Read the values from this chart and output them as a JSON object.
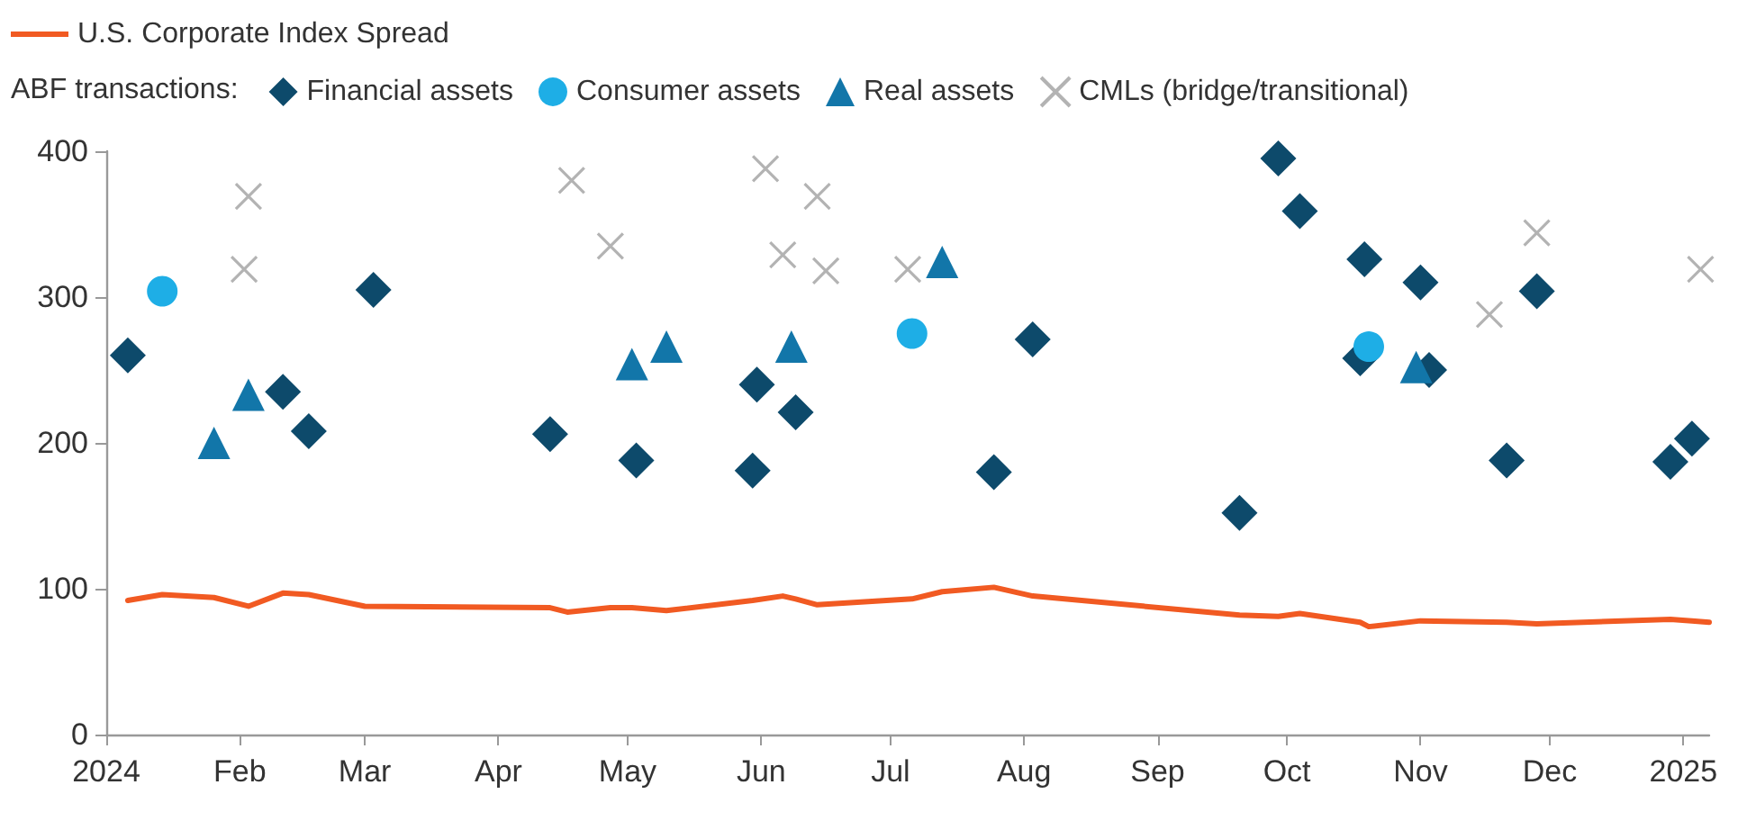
{
  "chart_data": {
    "type": "scatter",
    "legend": "top left",
    "legend_title": "ABF transactions:",
    "grid": false,
    "xlim": [
      "2024-01-01",
      "2025-01-07"
    ],
    "xticks": [
      {
        "value": "2024-01-01",
        "label": "2024"
      },
      {
        "value": "2024-02-01",
        "label": "Feb"
      },
      {
        "value": "2024-03-01",
        "label": "Mar"
      },
      {
        "value": "2024-04-01",
        "label": "Apr"
      },
      {
        "value": "2024-05-01",
        "label": "May"
      },
      {
        "value": "2024-06-01",
        "label": "Jun"
      },
      {
        "value": "2024-07-01",
        "label": "Jul"
      },
      {
        "value": "2024-08-01",
        "label": "Aug"
      },
      {
        "value": "2024-09-01",
        "label": "Sep"
      },
      {
        "value": "2024-10-01",
        "label": "Oct"
      },
      {
        "value": "2024-11-01",
        "label": "Nov"
      },
      {
        "value": "2024-12-01",
        "label": "Dec"
      },
      {
        "value": "2025-01-01",
        "label": "2025"
      }
    ],
    "ylim": [
      0,
      400
    ],
    "yticks": [
      0,
      100,
      200,
      300,
      400
    ],
    "series": [
      {
        "name": "U.S. Corporate Index Spread",
        "type": "line",
        "marker": "none",
        "color": "#f15a22",
        "x": [
          "2024-01-06",
          "2024-01-14",
          "2024-01-26",
          "2024-02-03",
          "2024-02-11",
          "2024-02-17",
          "2024-03-01",
          "2024-04-13",
          "2024-04-17",
          "2024-04-27",
          "2024-05-02",
          "2024-05-10",
          "2024-05-30",
          "2024-06-06",
          "2024-06-09",
          "2024-06-14",
          "2024-07-06",
          "2024-07-13",
          "2024-07-25",
          "2024-08-03",
          "2024-09-20",
          "2024-09-29",
          "2024-10-04",
          "2024-10-18",
          "2024-10-20",
          "2024-11-01",
          "2024-11-21",
          "2024-11-28",
          "2024-12-29",
          "2025-01-03",
          "2025-01-07"
        ],
        "values": [
          92,
          96,
          94,
          88,
          97,
          96,
          88,
          87,
          84,
          87,
          87,
          85,
          92,
          95,
          93,
          89,
          93,
          98,
          101,
          95,
          82,
          81,
          83,
          77,
          74,
          78,
          77,
          76,
          79,
          78,
          77
        ]
      },
      {
        "name": "Financial assets",
        "marker": "diamond",
        "color": "#0d4a6b",
        "x": [
          "2024-01-06",
          "2024-02-11",
          "2024-02-17",
          "2024-03-03",
          "2024-04-13",
          "2024-05-03",
          "2024-05-30",
          "2024-05-31",
          "2024-06-09",
          "2024-07-25",
          "2024-08-03",
          "2024-09-20",
          "2024-09-29",
          "2024-10-04",
          "2024-10-18",
          "2024-10-19",
          "2024-11-01",
          "2024-11-03",
          "2024-11-21",
          "2024-11-28",
          "2024-12-29",
          "2025-01-03"
        ],
        "values": [
          260,
          235,
          208,
          305,
          206,
          188,
          181,
          240,
          221,
          180,
          271,
          152,
          395,
          359,
          258,
          326,
          310,
          250,
          188,
          304,
          187,
          203
        ]
      },
      {
        "name": "Consumer assets",
        "marker": "circle",
        "color": "#1eaee6",
        "x": [
          "2024-01-14",
          "2024-07-06",
          "2024-10-20"
        ],
        "values": [
          304,
          275,
          266
        ]
      },
      {
        "name": "Real assets",
        "marker": "triangle",
        "color": "#1276a9",
        "x": [
          "2024-01-26",
          "2024-02-03",
          "2024-05-02",
          "2024-05-10",
          "2024-06-08",
          "2024-07-13",
          "2024-10-31"
        ],
        "values": [
          200,
          233,
          254,
          266,
          266,
          324,
          252
        ]
      },
      {
        "name": "CMLs (bridge/transitional)",
        "marker": "cross",
        "color": "#b3b3b3",
        "x": [
          "2024-02-02",
          "2024-02-03",
          "2024-04-18",
          "2024-04-27",
          "2024-06-02",
          "2024-06-06",
          "2024-06-14",
          "2024-06-16",
          "2024-07-05",
          "2024-11-17",
          "2024-11-28",
          "2025-01-05"
        ],
        "values": [
          319,
          369,
          380,
          335,
          388,
          329,
          369,
          318,
          319,
          288,
          344,
          319
        ]
      }
    ]
  }
}
